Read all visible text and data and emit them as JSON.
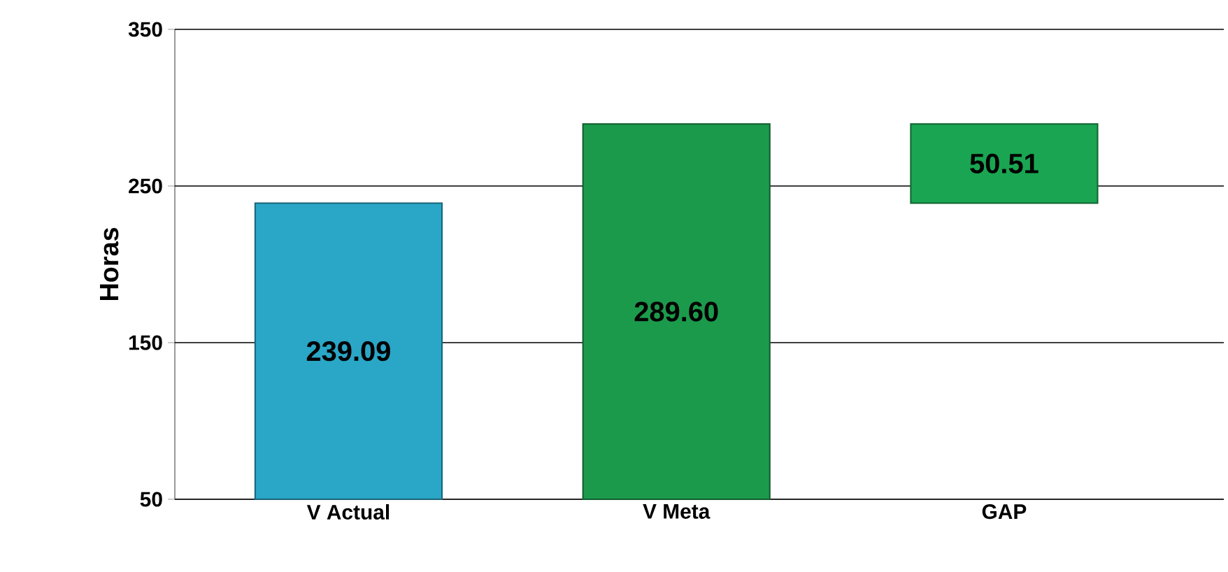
{
  "chart_data": {
    "type": "bar",
    "ylabel": "Horas",
    "categories": [
      "V Actual",
      "V Meta",
      "GAP"
    ],
    "values": [
      239.09,
      289.6,
      50.51
    ],
    "base": [
      null,
      null,
      239.09
    ],
    "value_labels": [
      "239.09",
      "289.60",
      "50.51"
    ],
    "colors": [
      "#2aa6c6",
      "#1c9a4c",
      "#1aa552"
    ],
    "ylim": [
      50,
      350
    ],
    "yticks": [
      50,
      150,
      250,
      350
    ],
    "grid": "y"
  }
}
